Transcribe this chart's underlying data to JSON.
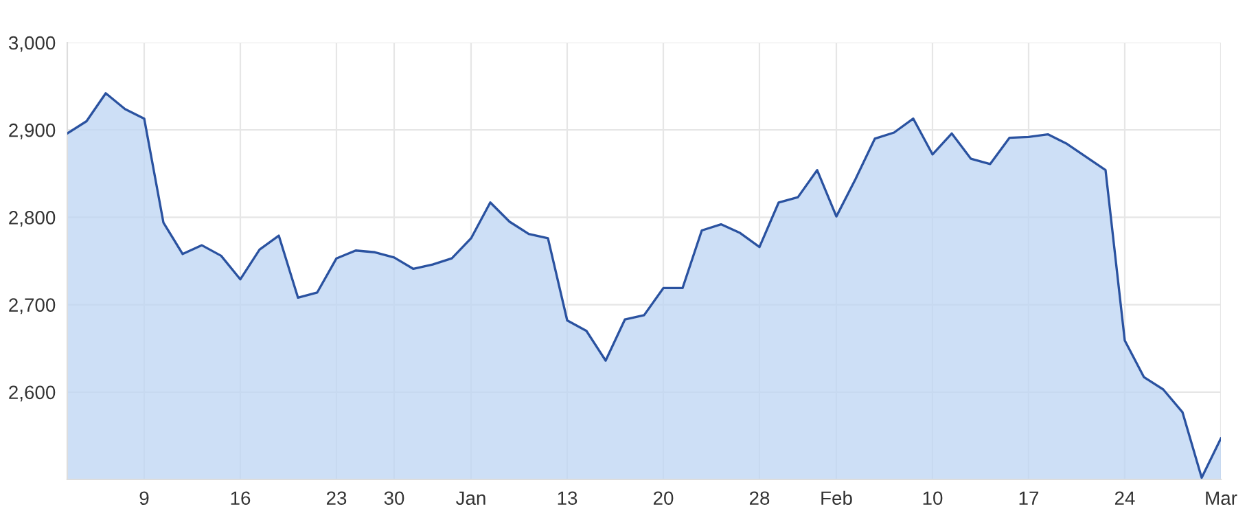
{
  "chart_data": {
    "type": "area",
    "categories": [
      null,
      null,
      null,
      null,
      "9",
      null,
      null,
      null,
      null,
      "16",
      null,
      null,
      null,
      null,
      "23",
      null,
      null,
      "30",
      null,
      null,
      null,
      "Jan",
      null,
      null,
      null,
      null,
      "13",
      null,
      null,
      null,
      null,
      "20",
      null,
      null,
      null,
      null,
      "28",
      null,
      null,
      null,
      "Feb",
      null,
      null,
      null,
      null,
      "10",
      null,
      null,
      null,
      null,
      "17",
      null,
      null,
      null,
      null,
      "24",
      null,
      null,
      null,
      null,
      "Mar"
    ],
    "series": [
      {
        "color": "#2a52a0",
        "values": [
          2896,
          2910,
          2942,
          2924,
          2913,
          2794,
          2758,
          2768,
          2756,
          2729,
          2763,
          2779,
          2708,
          2714,
          2753,
          2762,
          2760,
          2754,
          2741,
          2746,
          2753,
          2776,
          2817,
          2795,
          2781,
          2776,
          2682,
          2670,
          2636,
          2683,
          2688,
          2719,
          2719,
          2785,
          2792,
          2782,
          2766,
          2817,
          2823,
          2854,
          2801,
          2844,
          2890,
          2897,
          2913,
          2872,
          2896,
          2867,
          2861,
          2891,
          2892,
          2895,
          2884,
          2869,
          2854,
          2659,
          2617,
          2603,
          2577,
          2502,
          2547
        ]
      }
    ],
    "ylim": [
      2500,
      3000
    ],
    "yticks": [
      {
        "value": 2600,
        "label": "2,600"
      },
      {
        "value": 2700,
        "label": "2,700"
      },
      {
        "value": 2800,
        "label": "2,800"
      },
      {
        "value": 2900,
        "label": "2,900"
      },
      {
        "value": 3000,
        "label": "3,000"
      }
    ],
    "grid": true
  }
}
